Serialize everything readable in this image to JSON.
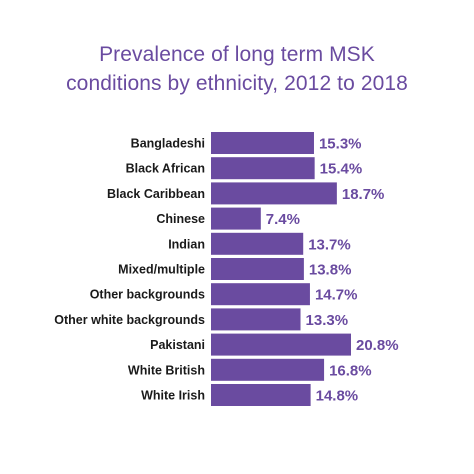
{
  "title_lines": [
    "Prevalence of long term MSK",
    "conditions by ethnicity, 2012 to 2018"
  ],
  "colors": {
    "bar": "#6a4ba0",
    "title": "#6a4ba0",
    "value_label": "#6a4ba0",
    "category_label": "#1a1a1a"
  },
  "chart_data": {
    "type": "bar",
    "orientation": "horizontal",
    "title": "Prevalence of long term MSK conditions by ethnicity, 2012 to 2018",
    "categories": [
      "Bangladeshi",
      "Black African",
      "Black Caribbean",
      "Chinese",
      "Indian",
      "Mixed/multiple",
      "Other backgrounds",
      "Other white backgrounds",
      "Pakistani",
      "White British",
      "White Irish"
    ],
    "values": [
      15.3,
      15.4,
      18.7,
      7.4,
      13.7,
      13.8,
      14.7,
      13.3,
      20.8,
      16.8,
      14.8
    ],
    "value_labels": [
      "15.3%",
      "15.4%",
      "18.7%",
      "7.4%",
      "13.7%",
      "13.8%",
      "14.7%",
      "13.3%",
      "20.8%",
      "16.8%",
      "14.8%"
    ],
    "unit": "%",
    "xlim": [
      0,
      20.8
    ],
    "xlabel": "",
    "ylabel": "",
    "grid": false,
    "legend": "none"
  }
}
